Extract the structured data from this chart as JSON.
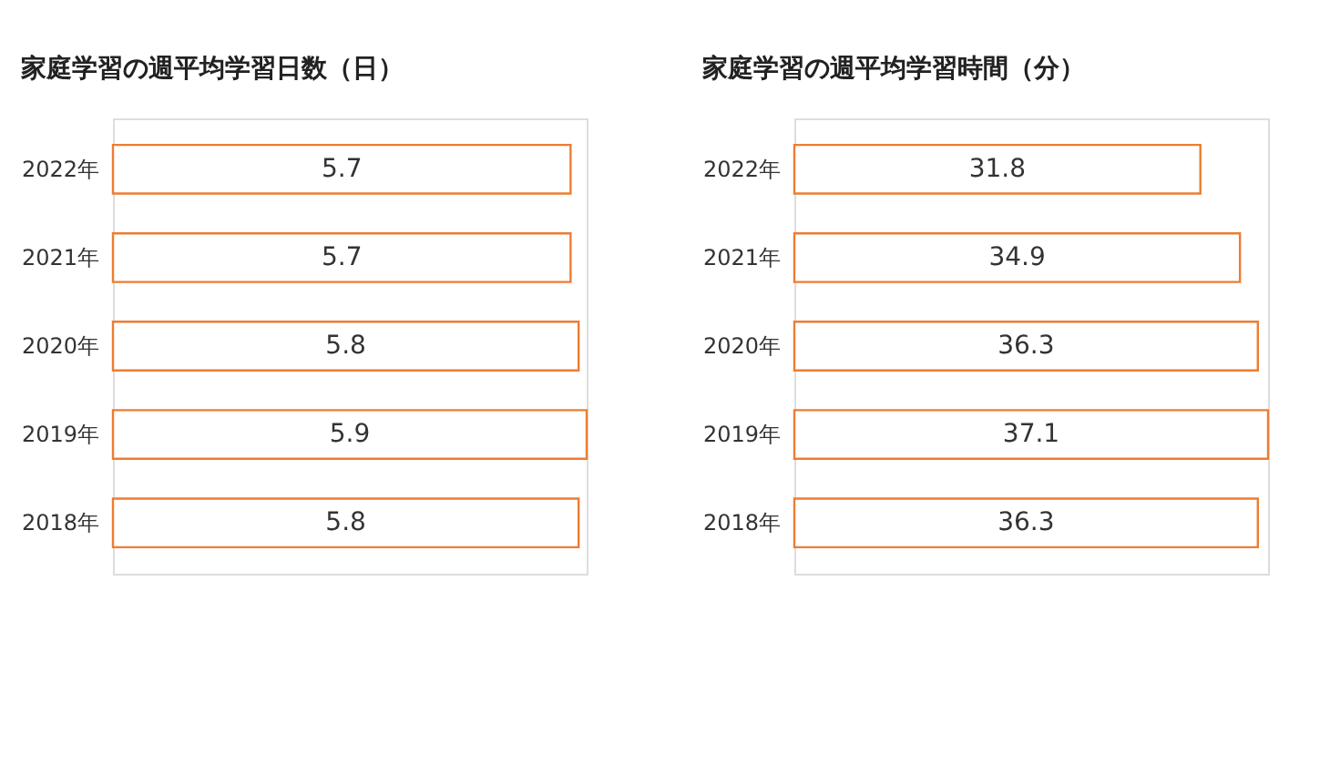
{
  "chart_data": [
    {
      "type": "bar",
      "orientation": "horizontal",
      "title": "家庭学習の週平均学習日数（日）",
      "categories": [
        "2022年",
        "2021年",
        "2020年",
        "2019年",
        "2018年"
      ],
      "values": [
        5.7,
        5.7,
        5.8,
        5.9,
        5.8
      ],
      "color": "#ed7d31",
      "data_labels": true
    },
    {
      "type": "bar",
      "orientation": "horizontal",
      "title": "家庭学習の週平均学習時間（分）",
      "categories": [
        "2022年",
        "2021年",
        "2020年",
        "2019年",
        "2018年"
      ],
      "values": [
        31.8,
        34.9,
        36.3,
        37.1,
        36.3
      ],
      "color": "#ed7d31",
      "data_labels": true
    }
  ]
}
